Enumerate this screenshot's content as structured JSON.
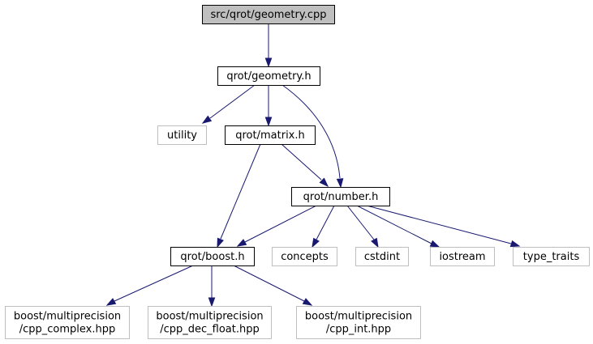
{
  "graph": {
    "nodes": [
      {
        "id": "geometry_cpp",
        "lines": [
          "src/qrot/geometry.cpp"
        ],
        "kind": "root"
      },
      {
        "id": "geometry_h",
        "lines": [
          "qrot/geometry.h"
        ],
        "kind": "internal"
      },
      {
        "id": "utility",
        "lines": [
          "utility"
        ],
        "kind": "external"
      },
      {
        "id": "matrix_h",
        "lines": [
          "qrot/matrix.h"
        ],
        "kind": "internal"
      },
      {
        "id": "number_h",
        "lines": [
          "qrot/number.h"
        ],
        "kind": "internal"
      },
      {
        "id": "boost_h",
        "lines": [
          "qrot/boost.h"
        ],
        "kind": "internal"
      },
      {
        "id": "concepts",
        "lines": [
          "concepts"
        ],
        "kind": "external"
      },
      {
        "id": "cstdint",
        "lines": [
          "cstdint"
        ],
        "kind": "external"
      },
      {
        "id": "iostream",
        "lines": [
          "iostream"
        ],
        "kind": "external"
      },
      {
        "id": "type_traits",
        "lines": [
          "type_traits"
        ],
        "kind": "external"
      },
      {
        "id": "cpp_complex",
        "lines": [
          "boost/multiprecision",
          "/cpp_complex.hpp"
        ],
        "kind": "external"
      },
      {
        "id": "cpp_dec_float",
        "lines": [
          "boost/multiprecision",
          "/cpp_dec_float.hpp"
        ],
        "kind": "external"
      },
      {
        "id": "cpp_int",
        "lines": [
          "boost/multiprecision",
          "/cpp_int.hpp"
        ],
        "kind": "external"
      }
    ],
    "edges": [
      {
        "from": "geometry_cpp",
        "to": "geometry_h"
      },
      {
        "from": "geometry_h",
        "to": "utility"
      },
      {
        "from": "geometry_h",
        "to": "matrix_h"
      },
      {
        "from": "geometry_h",
        "to": "number_h"
      },
      {
        "from": "matrix_h",
        "to": "number_h"
      },
      {
        "from": "matrix_h",
        "to": "boost_h"
      },
      {
        "from": "number_h",
        "to": "boost_h"
      },
      {
        "from": "number_h",
        "to": "concepts"
      },
      {
        "from": "number_h",
        "to": "cstdint"
      },
      {
        "from": "number_h",
        "to": "iostream"
      },
      {
        "from": "number_h",
        "to": "type_traits"
      },
      {
        "from": "boost_h",
        "to": "cpp_complex"
      },
      {
        "from": "boost_h",
        "to": "cpp_dec_float"
      },
      {
        "from": "boost_h",
        "to": "cpp_int"
      }
    ]
  }
}
